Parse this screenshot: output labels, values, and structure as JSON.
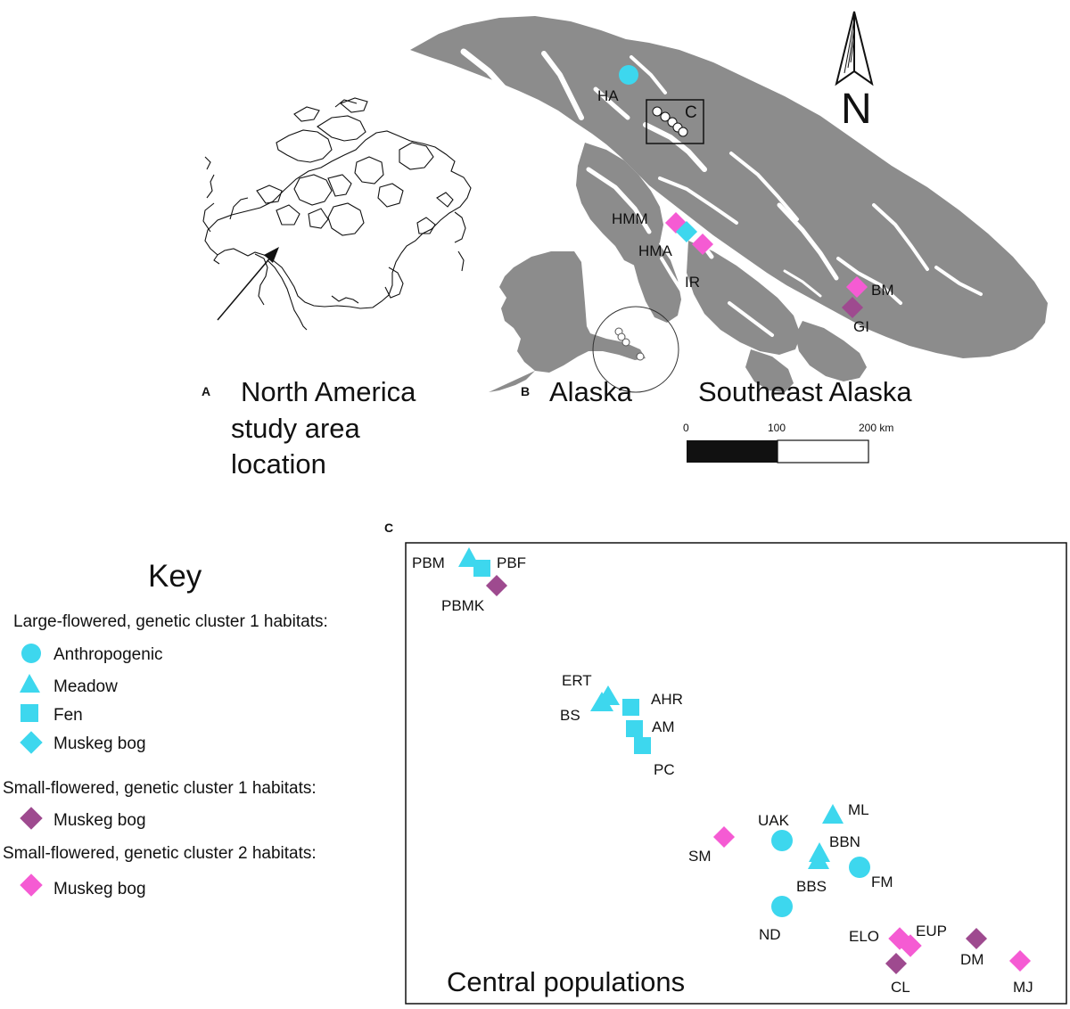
{
  "panels": {
    "a": {
      "letter": "A",
      "title_lines": [
        "North America",
        "study area",
        "location"
      ]
    },
    "b": {
      "letter": "B",
      "inset_title": "Alaska",
      "main_title": "Southeast Alaska",
      "inset_box_label": "C"
    },
    "c": {
      "letter": "C",
      "caption": "Central populations"
    }
  },
  "north_arrow": {
    "label": "N"
  },
  "scale_bar": {
    "ticks": [
      "0",
      "100",
      "200 km"
    ]
  },
  "key": {
    "title": "Key",
    "groups": [
      {
        "heading": "Large-flowered, genetic cluster 1 habitats:",
        "items": [
          {
            "shape": "circle",
            "label": "Anthropogenic"
          },
          {
            "shape": "triangle",
            "label": "Meadow"
          },
          {
            "shape": "square",
            "label": "Fen"
          },
          {
            "shape": "diamond",
            "label": "Muskeg bog"
          }
        ]
      },
      {
        "heading": "Small-flowered, genetic cluster 1 habitats:",
        "items": [
          {
            "shape": "diamond",
            "label": "Muskeg bog"
          }
        ]
      },
      {
        "heading": "Small-flowered, genetic cluster 2 habitats:",
        "items": [
          {
            "shape": "diamond",
            "label": "Muskeg bog"
          }
        ]
      }
    ]
  },
  "colors": {
    "large_cluster1": "#3dd7ee",
    "small_cluster1": "#9e4a8f",
    "small_cluster2": "#f55bd3",
    "land": "#8c8c8c"
  },
  "map_b_sites": [
    {
      "code": "HA",
      "habitat": "Anthropogenic"
    },
    {
      "code": "HMM",
      "habitat": "Muskeg bog"
    },
    {
      "code": "HMA",
      "habitat": "Muskeg bog"
    },
    {
      "code": "IR",
      "habitat": "Muskeg bog"
    },
    {
      "code": "BM",
      "habitat": "Muskeg bog"
    },
    {
      "code": "GI",
      "habitat": "Muskeg bog"
    }
  ],
  "map_c_sites": [
    {
      "code": "PBM",
      "habitat": "Meadow"
    },
    {
      "code": "PBF",
      "habitat": "Fen"
    },
    {
      "code": "PBMK",
      "habitat": "Muskeg bog"
    },
    {
      "code": "ERT",
      "habitat": "Meadow"
    },
    {
      "code": "BS",
      "habitat": "Meadow"
    },
    {
      "code": "AHR",
      "habitat": "Fen"
    },
    {
      "code": "AM",
      "habitat": "Fen"
    },
    {
      "code": "PC",
      "habitat": "Fen"
    },
    {
      "code": "ML",
      "habitat": "Meadow"
    },
    {
      "code": "UAK",
      "habitat": "Anthropogenic"
    },
    {
      "code": "BBN",
      "habitat": "Meadow"
    },
    {
      "code": "SM",
      "habitat": "Muskeg bog"
    },
    {
      "code": "BBS",
      "habitat": "Meadow"
    },
    {
      "code": "FM",
      "habitat": "Anthropogenic"
    },
    {
      "code": "ND",
      "habitat": "Anthropogenic"
    },
    {
      "code": "ELO",
      "habitat": "Muskeg bog"
    },
    {
      "code": "EUP",
      "habitat": "Muskeg bog"
    },
    {
      "code": "DM",
      "habitat": "Muskeg bog"
    },
    {
      "code": "CL",
      "habitat": "Muskeg bog"
    },
    {
      "code": "MJ",
      "habitat": "Muskeg bog"
    }
  ]
}
